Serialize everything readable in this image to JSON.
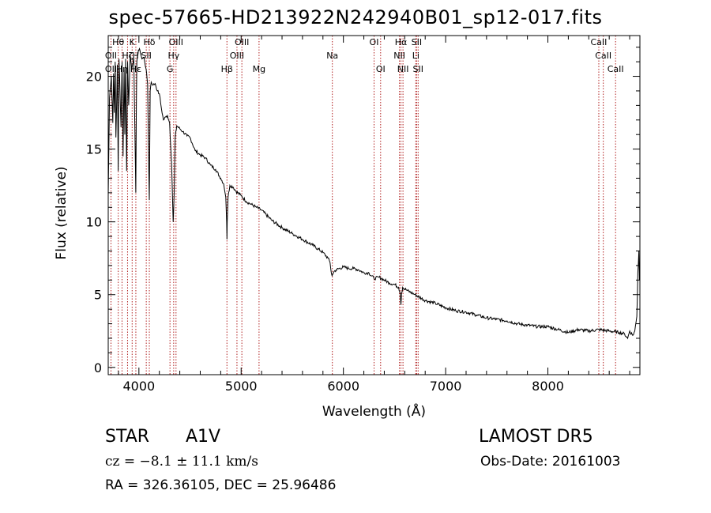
{
  "title": "spec-57665-HD213922N242940B01_sp12-017.fits",
  "object_type": "STAR",
  "object_class": "A1V",
  "survey": "LAMOST DR5",
  "redshift_text": "cz = −8.1 ± 11.1 km/s",
  "obs_date": "Obs-Date: 20161003",
  "coords": "RA = 326.36105, DEC =  25.96486",
  "chart_data": {
    "type": "line",
    "xlabel": "Wavelength (Å)",
    "ylabel": "Flux (relative)",
    "xlim": [
      3700,
      8900
    ],
    "ylim": [
      -0.5,
      22.8
    ],
    "xticks": [
      4000,
      5000,
      6000,
      7000,
      8000
    ],
    "yticks": [
      0,
      5,
      10,
      15,
      20
    ],
    "grid": false,
    "line_color": "#000000",
    "marker_color": "#b22222",
    "series": [
      {
        "x": [
          3700,
          3712,
          3730,
          3745,
          3752,
          3760,
          3768,
          3775,
          3790,
          3797,
          3805,
          3825,
          3835,
          3845,
          3855,
          3862,
          3870,
          3880,
          3889,
          3900,
          3915,
          3930,
          3950,
          3960,
          3970,
          3975,
          3980,
          3995,
          4010,
          4030,
          4050,
          4070,
          4085,
          4095,
          4102,
          4110,
          4120,
          4140,
          4160,
          4180,
          4200,
          4220,
          4240,
          4260,
          4280,
          4300,
          4320,
          4335,
          4340,
          4345,
          4355,
          4370,
          4400,
          4430,
          4470,
          4500,
          4550,
          4600,
          4650,
          4700,
          4750,
          4800,
          4830,
          4850,
          4858,
          4861,
          4864,
          4872,
          4890,
          4920,
          4950,
          5000,
          5050,
          5100,
          5150,
          5200,
          5300,
          5400,
          5500,
          5600,
          5700,
          5800,
          5850,
          5870,
          5880,
          5889,
          5896,
          5910,
          5930,
          6000,
          6050,
          6100,
          6150,
          6200,
          6250,
          6300,
          6350,
          6400,
          6450,
          6500,
          6540,
          6555,
          6563,
          6570,
          6580,
          6620,
          6700,
          6800,
          6900,
          7000,
          7100,
          7200,
          7300,
          7400,
          7500,
          7600,
          7700,
          7800,
          7900,
          8000,
          8100,
          8200,
          8300,
          8400,
          8500,
          8600,
          8700,
          8750,
          8780,
          8800,
          8830,
          8850,
          8870,
          8880,
          8890,
          8895
        ],
        "y": [
          11.8,
          18.5,
          20.0,
          16.8,
          20.2,
          17.5,
          21.0,
          15.8,
          20.8,
          13.5,
          21.2,
          16.5,
          21.0,
          14.5,
          20.5,
          16.0,
          21.2,
          13.5,
          21.0,
          18.0,
          21.5,
          20.5,
          21.3,
          16.5,
          12.0,
          18.0,
          21.0,
          21.8,
          21.8,
          21.2,
          21.3,
          20.5,
          19.5,
          14.5,
          11.5,
          19.0,
          19.6,
          19.4,
          19.5,
          19.0,
          18.8,
          17.8,
          17.0,
          17.2,
          17.3,
          16.8,
          14.0,
          10.0,
          10.8,
          12.0,
          15.8,
          16.6,
          16.4,
          16.2,
          15.9,
          15.8,
          14.9,
          14.6,
          14.4,
          13.9,
          13.6,
          13.0,
          12.6,
          11.7,
          10.0,
          8.8,
          10.0,
          11.7,
          12.5,
          12.4,
          12.1,
          11.8,
          11.4,
          11.2,
          11.0,
          10.8,
          10.1,
          9.6,
          9.2,
          8.8,
          8.4,
          7.9,
          7.5,
          7.2,
          6.6,
          6.3,
          6.4,
          6.6,
          6.7,
          6.9,
          6.8,
          6.8,
          6.7,
          6.5,
          6.5,
          6.1,
          6.2,
          6.0,
          5.8,
          5.7,
          5.5,
          5.1,
          4.3,
          5.1,
          5.5,
          5.3,
          5.0,
          4.6,
          4.4,
          4.1,
          3.9,
          3.8,
          3.6,
          3.4,
          3.3,
          3.2,
          3.0,
          2.9,
          2.8,
          2.8,
          2.6,
          2.4,
          2.6,
          2.5,
          2.6,
          2.5,
          2.4,
          2.3,
          2.0,
          2.5,
          2.2,
          2.5,
          3.5,
          6.5,
          8.0,
          6.0
        ]
      }
    ],
    "lines": [
      {
        "w": 3727,
        "top": "OII",
        "bot": "OII"
      },
      {
        "w": 3798,
        "top": "Hθ",
        "bot": "OII"
      },
      {
        "w": 3835,
        "top": "Hη",
        "bot": ""
      },
      {
        "w": 3889,
        "top": "Hζ",
        "bot": "Hε"
      },
      {
        "w": 3934,
        "top": "K",
        "bot": "H"
      },
      {
        "w": 3970,
        "top": "",
        "bot": ""
      },
      {
        "w": 4072,
        "top": "SII",
        "bot": ""
      },
      {
        "w": 4102,
        "top": "Hδ",
        "bot": ""
      },
      {
        "w": 4304,
        "top": "G",
        "bot": ""
      },
      {
        "w": 4340,
        "top": "Hγ",
        "bot": ""
      },
      {
        "w": 4363,
        "top": "OIII",
        "bot": ""
      },
      {
        "w": 4861,
        "top": "Hβ",
        "bot": ""
      },
      {
        "w": 4959,
        "top": "OIII",
        "bot": ""
      },
      {
        "w": 5007,
        "top": "OIII",
        "bot": ""
      },
      {
        "w": 5175,
        "top": "Mg",
        "bot": ""
      },
      {
        "w": 5892,
        "top": "Na",
        "bot": ""
      },
      {
        "w": 6300,
        "top": "OI",
        "bot": ""
      },
      {
        "w": 6364,
        "top": "OI",
        "bot": ""
      },
      {
        "w": 6548,
        "top": "NII",
        "bot": ""
      },
      {
        "w": 6563,
        "top": "Hα",
        "bot": ""
      },
      {
        "w": 6583,
        "top": "NII",
        "bot": ""
      },
      {
        "w": 6708,
        "top": "Li",
        "bot": ""
      },
      {
        "w": 6716,
        "top": "SII",
        "bot": ""
      },
      {
        "w": 6731,
        "top": "SII",
        "bot": ""
      },
      {
        "w": 8498,
        "top": "CaII",
        "bot": ""
      },
      {
        "w": 8542,
        "top": "CaII",
        "bot": ""
      },
      {
        "w": 8662,
        "top": "CaII",
        "bot": ""
      }
    ],
    "line_labels": [
      {
        "t": "Hθ",
        "w": 3798,
        "row": 0
      },
      {
        "t": "OII",
        "w": 3727,
        "row": 1
      },
      {
        "t": "OII",
        "w": 3727,
        "row": 2
      },
      {
        "t": "Hη",
        "w": 3835,
        "row": 2
      },
      {
        "t": "Hζ",
        "w": 3889,
        "row": 1
      },
      {
        "t": "Hε",
        "w": 3970,
        "row": 2
      },
      {
        "t": "K",
        "w": 3934,
        "row": 0
      },
      {
        "t": "H",
        "w": 3968,
        "row": 1
      },
      {
        "t": "Hδ",
        "w": 4102,
        "row": 0
      },
      {
        "t": "SII",
        "w": 4072,
        "row": 1
      },
      {
        "t": "OIII",
        "w": 4363,
        "row": 0
      },
      {
        "t": "Hγ",
        "w": 4340,
        "row": 1
      },
      {
        "t": "G",
        "w": 4304,
        "row": 2
      },
      {
        "t": "OIII",
        "w": 5007,
        "row": 0
      },
      {
        "t": "OIII",
        "w": 4959,
        "row": 1
      },
      {
        "t": "Hβ",
        "w": 4861,
        "row": 2
      },
      {
        "t": "Mg",
        "w": 5175,
        "row": 2
      },
      {
        "t": "Na",
        "w": 5892,
        "row": 1
      },
      {
        "t": "OI",
        "w": 6300,
        "row": 0
      },
      {
        "t": "OI",
        "w": 6364,
        "row": 2
      },
      {
        "t": "Hα",
        "w": 6563,
        "row": 0
      },
      {
        "t": "SII",
        "w": 6716,
        "row": 0
      },
      {
        "t": "NII",
        "w": 6548,
        "row": 1
      },
      {
        "t": "Li",
        "w": 6708,
        "row": 1
      },
      {
        "t": "NII",
        "w": 6583,
        "row": 2
      },
      {
        "t": "SII",
        "w": 6731,
        "row": 2
      },
      {
        "t": "CaII",
        "w": 8498,
        "row": 0
      },
      {
        "t": "CaII",
        "w": 8542,
        "row": 1
      },
      {
        "t": "CaII",
        "w": 8662,
        "row": 2
      }
    ]
  }
}
